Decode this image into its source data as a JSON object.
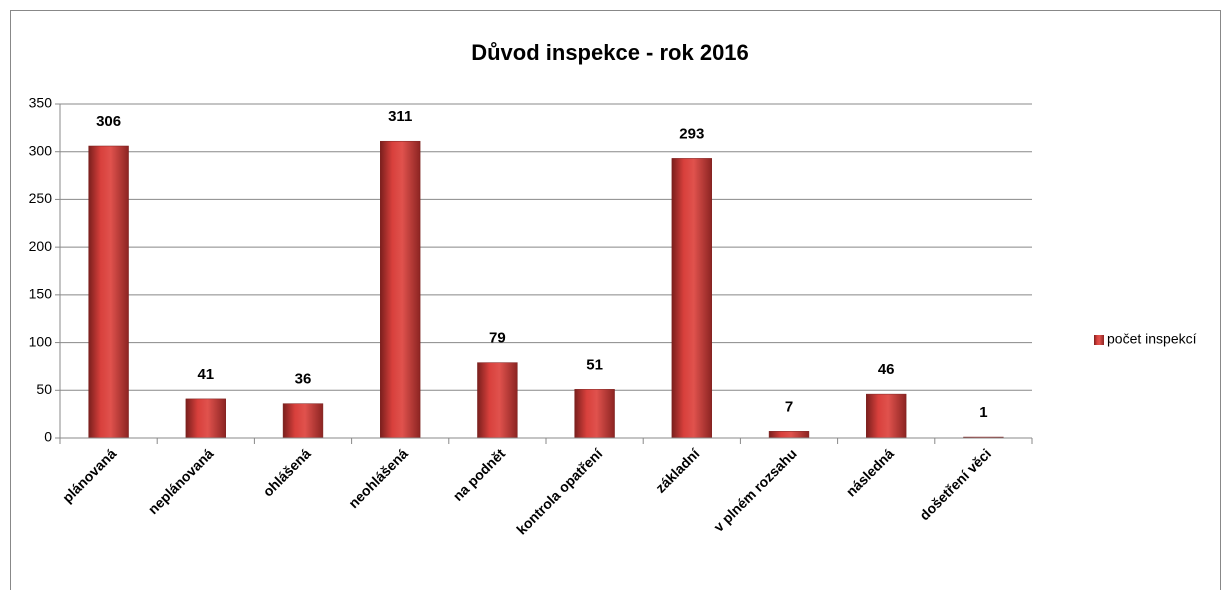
{
  "chart_data": {
    "type": "bar",
    "title": "Důvod inspekce - rok 2016",
    "categories": [
      "plánovaná",
      "neplánovaná",
      "ohlášená",
      "neohlášená",
      "na podnět",
      "kontrola opatření",
      "základní",
      "v plném rozsahu",
      "následná",
      "došetření věci"
    ],
    "series": [
      {
        "name": "počet inspekcí",
        "color": "#c0504d",
        "values": [
          306,
          41,
          36,
          311,
          79,
          51,
          293,
          7,
          46,
          1
        ]
      }
    ],
    "ylim": [
      0,
      350
    ],
    "yticks": [
      0,
      50,
      100,
      150,
      200,
      250,
      300,
      350
    ],
    "grid": true,
    "legend": "right"
  }
}
